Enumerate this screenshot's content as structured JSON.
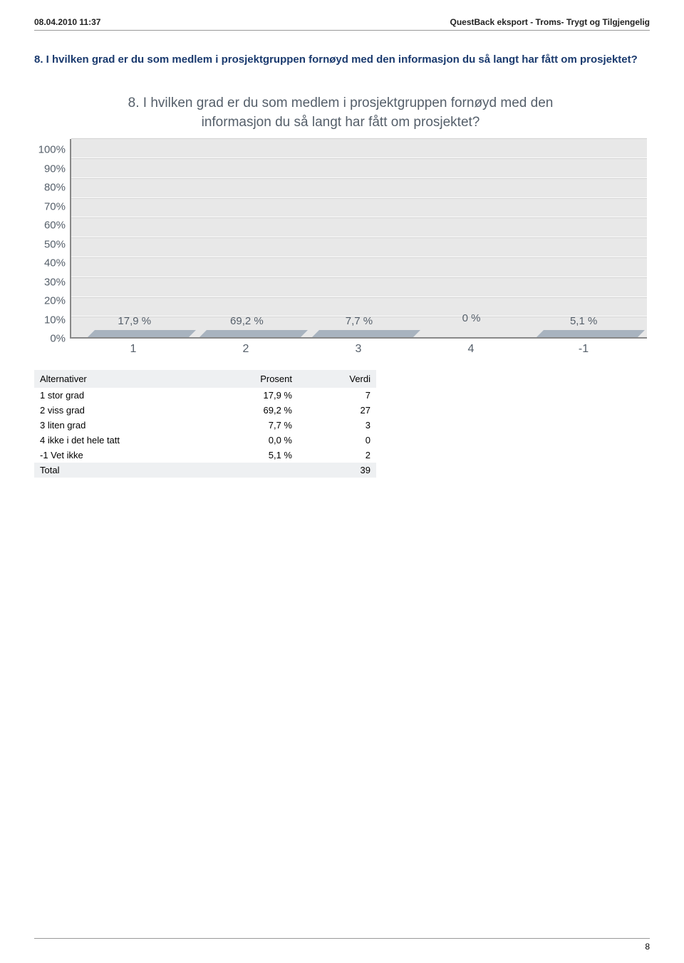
{
  "header": {
    "timestamp": "08.04.2010 11:37",
    "export_label": "QuestBack eksport - Troms- Trygt og Tilgjengelig"
  },
  "question": {
    "full_title": "8. I hvilken grad er du som medlem i prosjektgruppen fornøyd med den informasjon du så langt har fått om prosjektet?"
  },
  "chart": {
    "type": "bar",
    "title_line1": "8. I hvilken grad er du som medlem i prosjektgruppen fornøyd med den",
    "title_line2": "informasjon du så langt har fått om prosjektet?",
    "title_fontsize": 19,
    "title_color": "#555f6a",
    "ylim": [
      0,
      100
    ],
    "ytick_step": 10,
    "yticks": [
      "100%",
      "90%",
      "80%",
      "70%",
      "60%",
      "50%",
      "40%",
      "30%",
      "20%",
      "10%",
      "0%"
    ],
    "categories": [
      "1",
      "2",
      "3",
      "4",
      "-1"
    ],
    "values": [
      17.9,
      69.2,
      7.7,
      0.0,
      5.1
    ],
    "bar_labels": [
      "17,9 %",
      "69,2 %",
      "7,7 %",
      "0 %",
      "5,1 %"
    ],
    "bar_front_gradient": [
      "#8d9aa7",
      "#5f7082",
      "#6b7c8e"
    ],
    "bar_top_color": "#a8b3bf",
    "bar_side_color": "#4f5d6c",
    "background_color": "#e8e8e8",
    "grid_color_light": "#fcfcfc",
    "grid_color_dark": "#d4d4d4",
    "axis_color": "#888888",
    "label_fontsize": 15,
    "label_color": "#555f6a"
  },
  "table": {
    "columns": [
      "Alternativer",
      "Prosent",
      "Verdi"
    ],
    "rows": [
      {
        "label": "1 stor grad",
        "pct": "17,9 %",
        "val": "7"
      },
      {
        "label": "2 viss grad",
        "pct": "69,2 %",
        "val": "27"
      },
      {
        "label": "3 liten grad",
        "pct": "7,7 %",
        "val": "3"
      },
      {
        "label": "4 ikke i det hele tatt",
        "pct": "0,0 %",
        "val": "0"
      },
      {
        "label": "-1 Vet ikke",
        "pct": "5,1 %",
        "val": "2"
      }
    ],
    "total": {
      "label": "Total",
      "val": "39"
    }
  },
  "page_number": "8"
}
